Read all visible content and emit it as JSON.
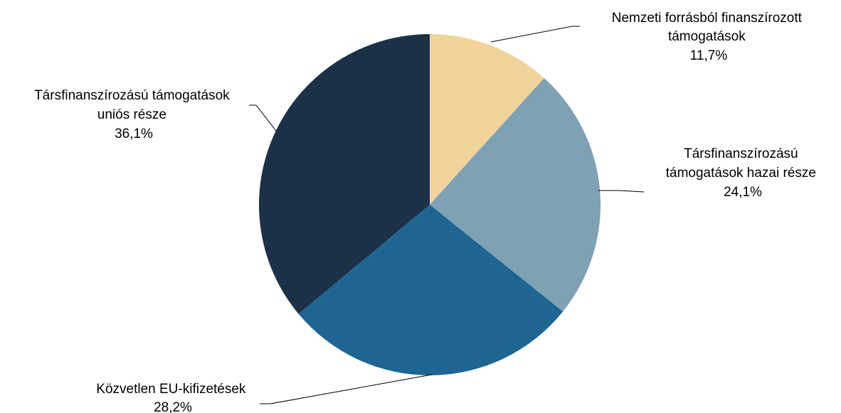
{
  "chart_data": {
    "type": "pie",
    "title": "",
    "slices": [
      {
        "label_lines": [
          "Nemzeti forrásból finanszírozott",
          "támogatások"
        ],
        "value_label": "11,7%",
        "value": 11.7,
        "color": "#F2D39C"
      },
      {
        "label_lines": [
          "Társfinanszírozású",
          "támogatások hazai része"
        ],
        "value_label": "24,1%",
        "value": 24.1,
        "color": "#7FA1B4"
      },
      {
        "label_lines": [
          "Közvetlen EU-kifizetések"
        ],
        "value_label": "28,2%",
        "value": 28.2,
        "color": "#1F6594"
      },
      {
        "label_lines": [
          "Társfinanszírozású támogatások",
          "uniós része"
        ],
        "value_label": "36,1%",
        "value": 36.1,
        "color": "#1C3147"
      }
    ]
  }
}
